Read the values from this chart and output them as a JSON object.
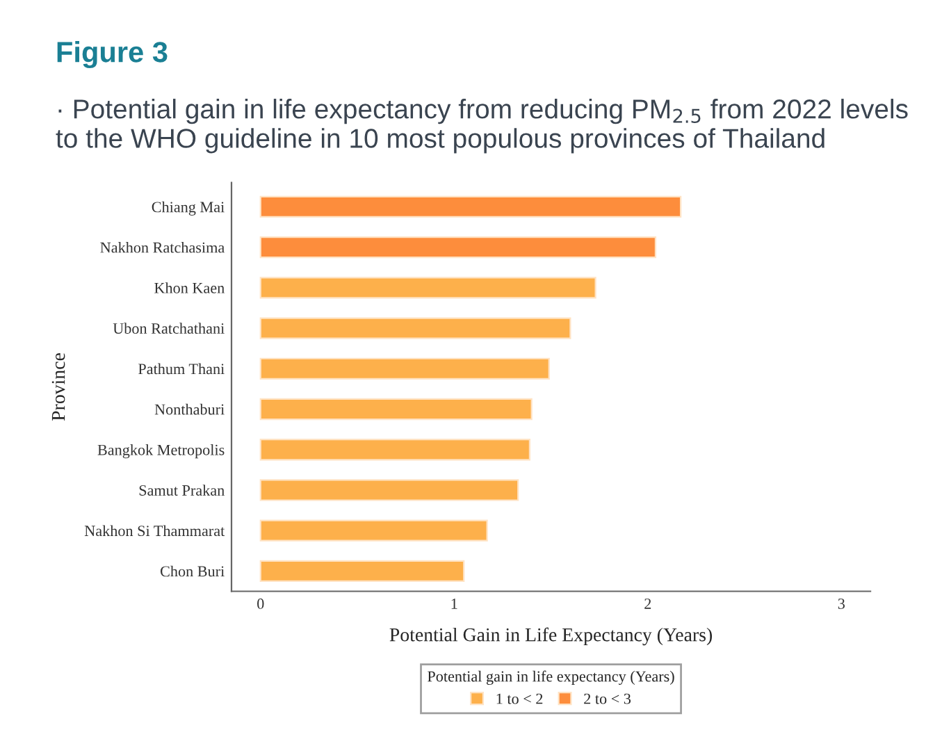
{
  "chart_data": {
    "type": "bar",
    "orientation": "horizontal",
    "title": "Figure 3",
    "subtitle": "· Potential gain in life expectancy from reducing PM$_{2.5}$ from 2022 levels to the WHO guideline in 10 most populous provinces of Thailand",
    "xlabel": "Potential Gain in Life Expectancy (Years)",
    "ylabel": "Province",
    "legend_title": "Potential gain in life expectancy (Years)",
    "categories": [
      "Chiang Mai",
      "Nakhon Ratchasima",
      "Khon Kaen",
      "Ubon Ratchathani",
      "Pathum Thani",
      "Nonthaburi",
      "Bangkok Metropolis",
      "Samut Prakan",
      "Nakhon Si Thammarat",
      "Chon Buri"
    ],
    "series": [
      {
        "name": "1 to < 2",
        "color": "#fdb04b",
        "values": [
          null,
          null,
          1.73,
          1.6,
          1.49,
          1.4,
          1.39,
          1.33,
          1.17,
          1.05
        ]
      },
      {
        "name": "2 to < 3",
        "color": "#fd8d3c",
        "values": [
          2.17,
          2.04,
          null,
          null,
          null,
          null,
          null,
          null,
          null,
          null
        ]
      }
    ],
    "xlim": [
      -0.15,
      3.15
    ],
    "xticks": [
      0,
      1,
      2,
      3
    ],
    "grid": false,
    "legend": "bottom"
  }
}
